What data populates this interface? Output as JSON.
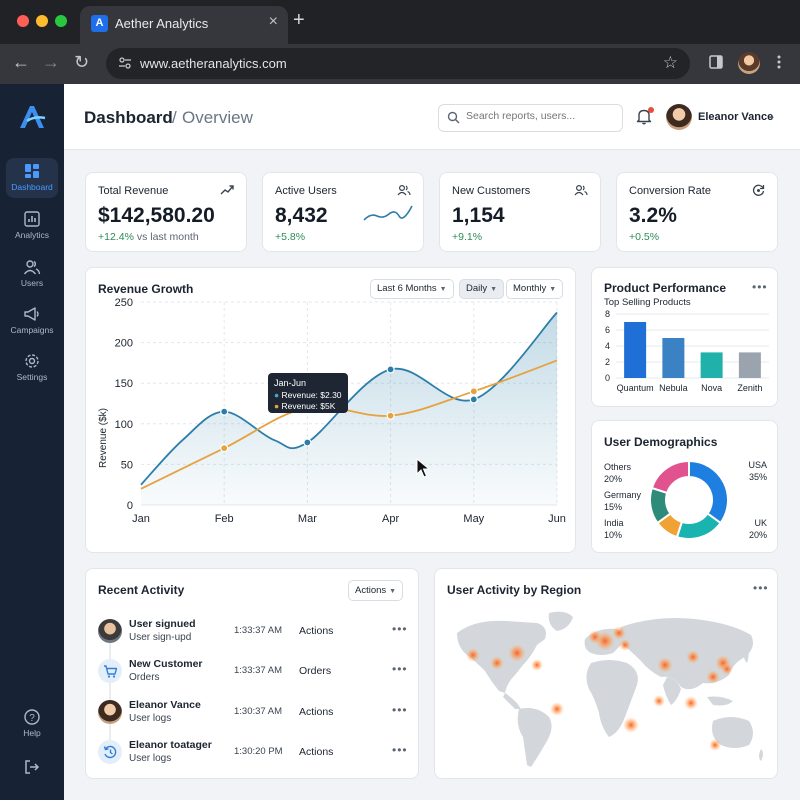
{
  "browser": {
    "tab_title": "Aether Analytics",
    "favicon_letter": "A",
    "url": "www.aetheranalytics.com",
    "icons": [
      "back-arrow-icon",
      "forward-arrow-icon",
      "reload-icon",
      "site-settings-icon",
      "star-icon",
      "sidebar-panel-icon",
      "kebab-menu-icon"
    ]
  },
  "sidebar": {
    "items": [
      {
        "label": "Dashboard",
        "icon": "dashboard-icon",
        "active": true
      },
      {
        "label": "Analytics",
        "icon": "analytics-icon"
      },
      {
        "label": "Users",
        "icon": "users-icon"
      },
      {
        "label": "Campaigns",
        "icon": "megaphone-icon"
      },
      {
        "label": "Settings",
        "icon": "gear-icon"
      }
    ],
    "help_label": "Help",
    "logout_icon": "logout-icon"
  },
  "header": {
    "title": "Dashboard",
    "separator": "/",
    "subtitle": "Overview",
    "search_placeholder": "Search reports, users...",
    "user_name": "Eleanor Vance",
    "caret": "⌄"
  },
  "kpis": [
    {
      "label": "Total Revenue",
      "value": "$142,580.20",
      "delta": "+12.4%",
      "delta_suffix": " vs last month",
      "icon": "trend-up-icon"
    },
    {
      "label": "Active Users",
      "value": "8,432",
      "delta": "+5.8%",
      "icon": "users-icon"
    },
    {
      "label": "New Customers",
      "value": "1,154",
      "delta": "+9.1%",
      "icon": "users-icon"
    },
    {
      "label": "Conversion Rate",
      "value": "3.2%",
      "delta": "+0.5%",
      "icon": "conversion-icon"
    }
  ],
  "revenue_chart": {
    "title": "Revenue Growth",
    "filters": [
      {
        "label": "Last 6 Months",
        "active": false
      },
      {
        "label": "Daily",
        "active": true
      },
      {
        "label": "Monthly",
        "active": false
      }
    ],
    "tooltip": {
      "title": "Jan-Jun",
      "line1": "Revenue: $2.30",
      "line2": "Revenue: $5K"
    },
    "colors": {
      "blue": "#2a7ea8",
      "orange": "#e5a23f"
    }
  },
  "product_card": {
    "title": "Product Performance",
    "subtitle": "Top Selling Products",
    "menu": "•••"
  },
  "demographics_card": {
    "title": "User Demographics"
  },
  "activity": {
    "title": "Recent Activity",
    "actions_label": "Actions",
    "menu": "•••",
    "rows": [
      {
        "name": "User signued",
        "sub": "User sign-upd",
        "time": "1:33:37 AM",
        "type": "Actions",
        "avatar": "person-photo"
      },
      {
        "name": "New Customer",
        "sub": "Orders",
        "time": "1:33:37 AM",
        "type": "Orders",
        "avatar": "cart-icon"
      },
      {
        "name": "Eleanor Vance",
        "sub": "User logs",
        "time": "1:30:37 AM",
        "type": "Actions",
        "avatar": "person-photo"
      },
      {
        "name": "Eleanor toatager",
        "sub": "User logs",
        "time": "1:30:20 PM",
        "type": "Actions",
        "avatar": "history-icon"
      }
    ]
  },
  "region_card": {
    "title": "User Activity by Region",
    "menu": "•••"
  },
  "chart_data": [
    {
      "type": "line",
      "x": [
        "Jan",
        "Feb",
        "Mar",
        "Apr",
        "May",
        "Jun"
      ],
      "ylabel": "Revenue ($k)",
      "ylim": [
        0,
        250
      ],
      "yticks": [
        "0",
        "50",
        "100",
        "150",
        "200",
        "250"
      ],
      "grid": true,
      "series": [
        {
          "color": "#2a7ea8",
          "area": true,
          "points": [
            [
              0,
              25
            ],
            [
              0.5,
              80
            ],
            [
              1,
              115
            ],
            [
              1.6,
              80
            ],
            [
              2,
              77
            ],
            [
              3,
              167
            ],
            [
              4,
              130
            ],
            [
              5,
              237
            ]
          ]
        },
        {
          "color": "#e5a23f",
          "points": [
            [
              0,
              20
            ],
            [
              1,
              70
            ],
            [
              2,
              120
            ],
            [
              3,
              110
            ],
            [
              4,
              140
            ],
            [
              5,
              178
            ]
          ]
        }
      ],
      "markers": [
        {
          "series": 0,
          "x": 1,
          "y": 115
        },
        {
          "series": 0,
          "x": 2,
          "y": 77
        },
        {
          "series": 0,
          "x": 3,
          "y": 167
        },
        {
          "series": 0,
          "x": 4,
          "y": 130
        },
        {
          "series": 1,
          "x": 1,
          "y": 70
        },
        {
          "series": 1,
          "x": 2,
          "y": 120
        },
        {
          "series": 1,
          "x": 3,
          "y": 110
        },
        {
          "series": 1,
          "x": 4,
          "y": 140
        }
      ]
    },
    {
      "type": "bar",
      "categories": [
        "Quantum",
        "Nebula",
        "Nova",
        "Zenith"
      ],
      "values": [
        7,
        5,
        3.2,
        3.2
      ],
      "colors": [
        "#1f6fd6",
        "#3b82c4",
        "#20b2aa",
        "#9aa3ae"
      ],
      "ylim": [
        0,
        8
      ],
      "yticks": [
        "0",
        "2",
        "4",
        "6",
        "8"
      ]
    },
    {
      "type": "pie",
      "donut": true,
      "slices": [
        {
          "label": "USA",
          "value": 35,
          "display": "35%",
          "color": "#1f7fe0"
        },
        {
          "label": "UK",
          "value": 20,
          "display": "20%",
          "color": "#19b3b0"
        },
        {
          "label": "India",
          "value": 10,
          "display": "10%",
          "color": "#f0a334"
        },
        {
          "label": "Germany",
          "value": 15,
          "display": "15%",
          "color": "#2e8b7a"
        },
        {
          "label": "Others",
          "value": 20,
          "display": "20%",
          "color": "#e0538e"
        }
      ]
    }
  ]
}
